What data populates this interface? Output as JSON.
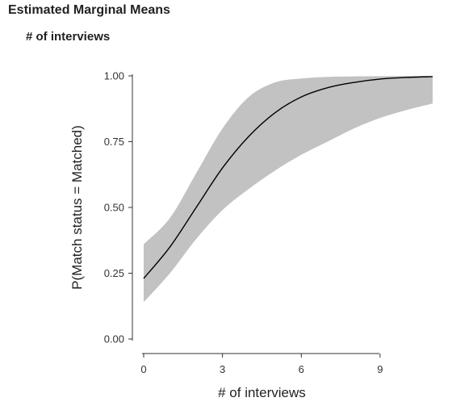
{
  "header": {
    "title": "Estimated Marginal Means",
    "subtitle": "# of interviews"
  },
  "chart_data": {
    "type": "line",
    "title": "Estimated Marginal Means",
    "subtitle": "# of interviews",
    "xlabel": "# of interviews",
    "ylabel": "P(Match status = Matched)",
    "xlim": [
      0,
      11
    ],
    "ylim": [
      0,
      1
    ],
    "xticks": [
      0,
      3,
      6,
      9
    ],
    "xtick_labels": [
      "0",
      "3",
      "6",
      "9"
    ],
    "yticks": [
      0,
      0.25,
      0.5,
      0.75,
      1
    ],
    "ytick_labels": [
      "0.00",
      "0.25",
      "0.50",
      "0.75",
      "1.00"
    ],
    "grid": false,
    "colors": {
      "line": "#000000",
      "band": "#c2c2c2",
      "axis": "#333333"
    },
    "series": [
      {
        "x": [
          0,
          1,
          2,
          3,
          4,
          5,
          6,
          7,
          8,
          9,
          10,
          11
        ],
        "y": [
          0.23,
          0.35,
          0.5,
          0.65,
          0.77,
          0.86,
          0.92,
          0.955,
          0.975,
          0.988,
          0.994,
          0.997
        ],
        "lower": [
          0.14,
          0.25,
          0.38,
          0.49,
          0.57,
          0.64,
          0.7,
          0.75,
          0.8,
          0.84,
          0.87,
          0.895
        ],
        "upper": [
          0.36,
          0.46,
          0.63,
          0.8,
          0.92,
          0.975,
          0.99,
          0.996,
          0.998,
          0.999,
          0.9995,
          0.9998
        ]
      }
    ]
  }
}
